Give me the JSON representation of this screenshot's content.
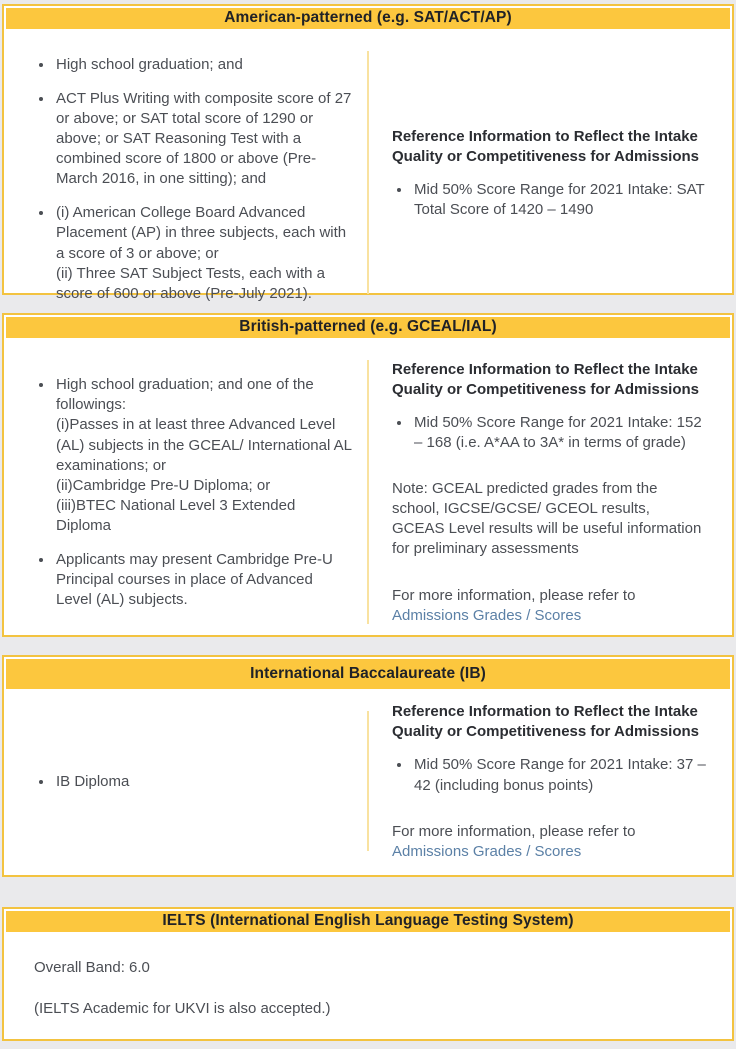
{
  "colors": {
    "header_bg": "#fcc73e",
    "card_border": "#f3c340",
    "column_divider": "#f9e2a0",
    "header_text": "#202227",
    "body_text": "#4b4e54",
    "link": "#5b80a6",
    "page_bg": "#eaeaec"
  },
  "sections": {
    "american": {
      "title": "American-patterned (e.g. SAT/ACT/AP)",
      "left_bullets": [
        "High school graduation; and",
        "ACT Plus Writing with composite score of 27 or above; or SAT total score of 1290 or above; or SAT Reasoning Test with a combined score of 1800 or above (Pre-March 2016, in one sitting); and",
        "(i) American College Board Advanced Placement (AP) in three subjects, each with a score of 3 or above; or\n(ii) Three SAT Subject Tests, each with a score of 600 or above (Pre-July 2021)."
      ],
      "right": {
        "heading": "Reference Information to Reflect the Intake Quality or Competitiveness for Admissions",
        "bullets": [
          "Mid 50% Score Range for 2021 Intake: SAT Total Score of 1420 – 1490"
        ]
      }
    },
    "british": {
      "title": "British-patterned (e.g. GCEAL/IAL)",
      "left_bullets": [
        "High school graduation; and one of the followings:\n(i)Passes in at least three Advanced Level (AL) subjects in the GCEAL/ International AL examinations; or\n(ii)Cambridge Pre-U Diploma; or\n(iii)BTEC National Level 3 Extended Diploma",
        "Applicants may present Cambridge Pre-U Principal courses in place of Advanced Level (AL) subjects."
      ],
      "right": {
        "heading": "Reference Information to Reflect the Intake Quality or Competitiveness for Admissions",
        "bullets": [
          "Mid 50% Score Range for 2021 Intake: 152 – 168 (i.e. A*AA to 3A* in terms of grade)"
        ],
        "note": "Note: GCEAL predicted grades from the school, IGCSE/GCSE/ GCEOL results, GCEAS Level results will be useful information for preliminary assessments",
        "more_info_prefix": "For more information, please refer to ",
        "link_label": "Admissions Grades / Scores"
      }
    },
    "ib": {
      "title": "International Baccalaureate (IB)",
      "left_bullets": [
        "IB Diploma"
      ],
      "right": {
        "heading": "Reference Information to Reflect the Intake Quality or Competitiveness for Admissions",
        "bullets": [
          "Mid 50% Score Range for 2021 Intake: 37 – 42 (including bonus points)"
        ],
        "more_info_prefix": "For more information, please refer to ",
        "link_label": "Admissions Grades / Scores"
      }
    },
    "ielts": {
      "title": "IELTS (International English Language Testing System)",
      "lines": [
        "Overall Band: 6.0",
        "(IELTS Academic for UKVI is also accepted.)"
      ]
    }
  }
}
